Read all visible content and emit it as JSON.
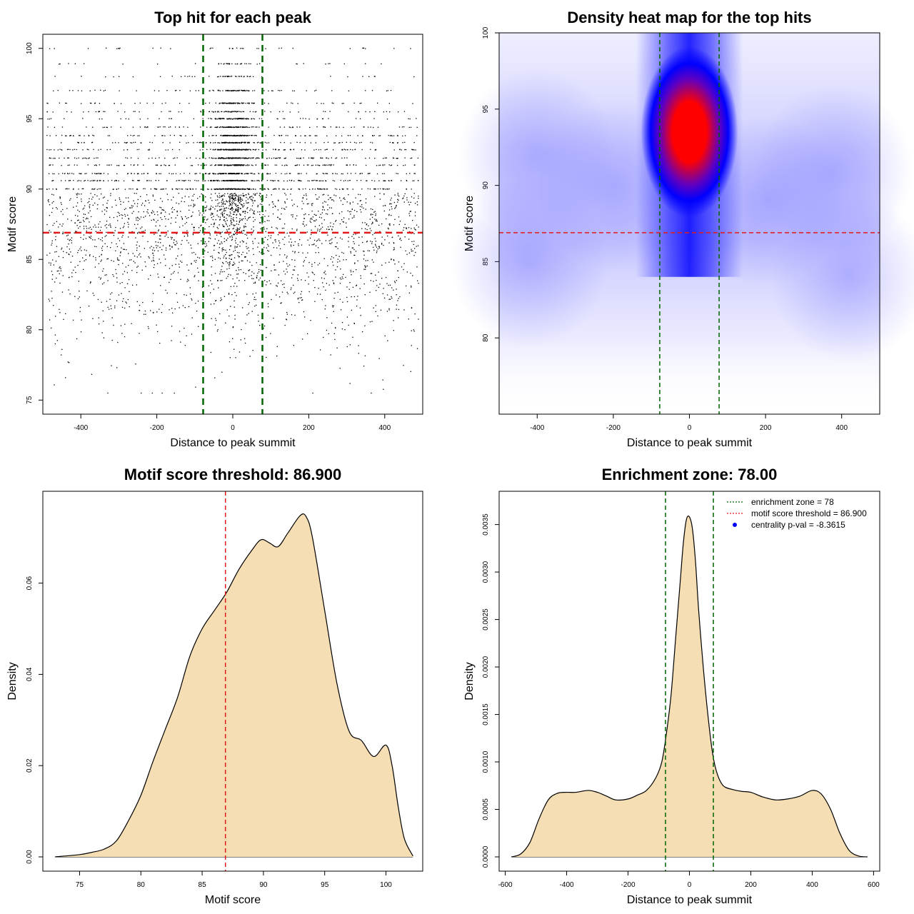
{
  "chart_data": [
    {
      "type": "scatter",
      "title": "Top hit for each peak",
      "xlabel": "Distance to peak summit",
      "ylabel": "Motif score",
      "xlim": [
        -500,
        500
      ],
      "ylim": [
        74,
        101
      ],
      "xticks": [
        -400,
        -200,
        0,
        200,
        400
      ],
      "yticks": [
        75,
        80,
        85,
        90,
        95,
        100
      ],
      "hlines": [
        {
          "value": 86.9,
          "color": "#e31a1c",
          "style": "dashed"
        }
      ],
      "vlines": [
        {
          "value": -78,
          "color": "#006400",
          "style": "dashed"
        },
        {
          "value": 78,
          "color": "#006400",
          "style": "dashed"
        }
      ],
      "point_color": "#000000",
      "distribution": {
        "background_x_range": [
          -490,
          490
        ],
        "background_score_mean": 88.5,
        "background_score_sd": 4.5,
        "central_cluster_x_sd": 28,
        "central_cluster_score_mean": 92,
        "central_cluster_score_sd": 3.2,
        "discrete_score_levels": [
          100,
          98.9,
          98,
          97,
          96.1,
          95.5,
          95,
          94.4,
          93.8,
          93.3,
          92.8,
          92.2,
          91.7,
          91.1,
          90.6,
          90
        ]
      }
    },
    {
      "type": "heatmap",
      "title": "Density heat map for the top hits",
      "xlabel": "Distance to peak summit",
      "ylabel": "Motif score",
      "xlim": [
        -500,
        500
      ],
      "ylim": [
        75,
        100
      ],
      "xticks": [
        -400,
        -200,
        0,
        200,
        400
      ],
      "yticks": [
        80,
        85,
        90,
        95,
        100
      ],
      "color_scale": [
        "#ffffff",
        "#0000ff",
        "#ff0000"
      ],
      "hlines": [
        {
          "value": 86.9,
          "color": "#e31a1c",
          "style": "dashed"
        }
      ],
      "vlines": [
        {
          "value": -78,
          "color": "#006400",
          "style": "dashed"
        },
        {
          "value": 78,
          "color": "#006400",
          "style": "dashed"
        }
      ],
      "hotspot": {
        "x": 0,
        "y": 93.5,
        "x_sd": 35,
        "y_sd": 3.5
      },
      "background": {
        "y_mean": 89,
        "y_sd": 5
      }
    },
    {
      "type": "area",
      "title": "Motif score threshold: 86.900",
      "xlabel": "Motif score",
      "ylabel": "Density",
      "xlim": [
        72,
        103
      ],
      "ylim": [
        0,
        0.077
      ],
      "xticks": [
        75,
        80,
        85,
        90,
        95,
        100
      ],
      "yticks": [
        0.0,
        0.02,
        0.04,
        0.06
      ],
      "ytick_labels": [
        "0.00",
        "0.02",
        "0.04",
        "0.06"
      ],
      "fill": "#f5deb3",
      "vlines": [
        {
          "value": 86.9,
          "color": "#e31a1c",
          "style": "dashed"
        }
      ],
      "x": [
        73,
        75,
        76,
        77,
        78,
        79,
        80,
        81,
        82,
        83,
        84,
        85,
        86,
        87,
        88,
        89,
        89.8,
        90.5,
        91.2,
        92,
        93,
        93.5,
        94,
        95,
        96,
        97,
        98,
        99,
        100,
        100.5,
        101,
        101.5,
        102.2
      ],
      "values": [
        0.0,
        0.0005,
        0.001,
        0.0017,
        0.0035,
        0.008,
        0.0135,
        0.021,
        0.028,
        0.035,
        0.044,
        0.05,
        0.054,
        0.058,
        0.063,
        0.067,
        0.0695,
        0.0688,
        0.068,
        0.071,
        0.0748,
        0.0745,
        0.07,
        0.054,
        0.038,
        0.0275,
        0.0255,
        0.022,
        0.0245,
        0.02,
        0.011,
        0.004,
        0.0002
      ]
    },
    {
      "type": "area",
      "title": "Enrichment zone: 78.00",
      "xlabel": "Distance to peak summit",
      "ylabel": "Density",
      "xlim": [
        -620,
        620
      ],
      "ylim": [
        0,
        0.0037
      ],
      "xticks": [
        -600,
        -400,
        -200,
        0,
        200,
        400,
        600
      ],
      "yticks": [
        0.0,
        0.0005,
        0.001,
        0.0015,
        0.002,
        0.0025,
        0.003,
        0.0035
      ],
      "ytick_labels": [
        "0.0000",
        "0.0005",
        "0.0010",
        "0.0015",
        "0.0020",
        "0.0025",
        "0.0030",
        "0.0035"
      ],
      "fill": "#f5deb3",
      "vlines": [
        {
          "value": -78,
          "color": "#006400",
          "style": "dashed"
        },
        {
          "value": 78,
          "color": "#006400",
          "style": "dashed"
        }
      ],
      "legend": {
        "placement": "top-right",
        "entries": [
          {
            "label": "enrichment zone = 78",
            "color": "#006400",
            "symbol": "dotted-line"
          },
          {
            "label": "motif score threshold = 86.900",
            "color": "#e31a1c",
            "symbol": "dotted-line"
          },
          {
            "label": "centrality p-val = -8.3615",
            "color": "#0000ff",
            "symbol": "point"
          }
        ]
      },
      "x": [
        -580,
        -550,
        -520,
        -490,
        -460,
        -430,
        -400,
        -370,
        -330,
        -300,
        -270,
        -240,
        -200,
        -170,
        -140,
        -110,
        -90,
        -75,
        -60,
        -45,
        -30,
        -20,
        -10,
        0,
        10,
        20,
        30,
        45,
        60,
        75,
        90,
        110,
        140,
        170,
        200,
        240,
        280,
        320,
        360,
        400,
        430,
        460,
        490,
        520,
        550,
        580
      ],
      "values": [
        0.0,
        3e-05,
        0.00015,
        0.0004,
        0.0006,
        0.00067,
        0.00068,
        0.00068,
        0.0007,
        0.00068,
        0.00064,
        0.0006,
        0.00061,
        0.00065,
        0.0007,
        0.00083,
        0.001,
        0.0013,
        0.0017,
        0.0023,
        0.0029,
        0.0033,
        0.00355,
        0.00358,
        0.00345,
        0.0031,
        0.0026,
        0.002,
        0.0015,
        0.0011,
        0.00088,
        0.00075,
        0.00071,
        0.00069,
        0.00068,
        0.00063,
        0.0006,
        0.00061,
        0.00064,
        0.0007,
        0.00066,
        0.0005,
        0.00025,
        7e-05,
        1e-05,
        0.0
      ]
    }
  ]
}
